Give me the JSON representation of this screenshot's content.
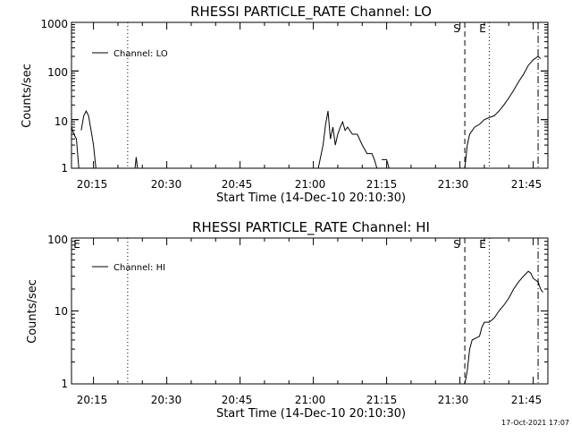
{
  "footer_timestamp": "17-Oct-2021 17:07",
  "chart_data": [
    {
      "type": "line",
      "title": "RHESSI PARTICLE_RATE Channel: LO",
      "xlabel": "Start Time (14-Dec-10 20:10:30)",
      "ylabel": "Counts/sec",
      "yscale": "log",
      "ylim": [
        1,
        1000
      ],
      "xlim_minutes": [
        20.16,
        21.8
      ],
      "xticks": [
        "20:15",
        "20:30",
        "20:45",
        "21:00",
        "21:15",
        "21:30",
        "21:45"
      ],
      "yticks": [
        "1",
        "10",
        "100",
        "1000"
      ],
      "legend": {
        "label": "Channel: LO",
        "placement": "top-left"
      },
      "markers": [
        {
          "time": "20:22",
          "style": "dotted",
          "label": ""
        },
        {
          "time": "21:31",
          "style": "dashed",
          "label": "S"
        },
        {
          "time": "21:36",
          "style": "dotted",
          "label": "E"
        },
        {
          "time": "21:46",
          "style": "dashdot",
          "label": ""
        }
      ],
      "series": [
        {
          "name": "Channel: LO",
          "segments": [
            [
              [
                "20:10:30",
                7
              ],
              [
                "20:11",
                5
              ],
              [
                "20:11:30",
                4
              ],
              [
                "20:12",
                1
              ]
            ],
            [
              [
                "20:12:30",
                6
              ],
              [
                "20:13",
                12
              ],
              [
                "20:13:30",
                15
              ],
              [
                "20:14",
                12
              ],
              [
                "20:14:30",
                6
              ],
              [
                "20:15",
                3
              ],
              [
                "20:15:30",
                1
              ]
            ],
            [
              [
                "20:23:30",
                1
              ],
              [
                "20:23:45",
                1.7
              ],
              [
                "20:24",
                1
              ]
            ],
            [
              [
                "21:01",
                1
              ],
              [
                "21:02",
                3
              ],
              [
                "21:02:30",
                8
              ],
              [
                "21:03",
                15
              ],
              [
                "21:03:30",
                4
              ],
              [
                "21:04",
                7
              ],
              [
                "21:04:30",
                3
              ],
              [
                "21:05",
                5
              ],
              [
                "21:05:30",
                7
              ],
              [
                "21:06",
                9
              ],
              [
                "21:06:30",
                6
              ],
              [
                "21:07",
                7
              ],
              [
                "21:08",
                5
              ],
              [
                "21:09",
                5
              ],
              [
                "21:10",
                3
              ],
              [
                "21:11",
                2
              ],
              [
                "21:12",
                2
              ],
              [
                "21:12:30",
                1.5
              ],
              [
                "21:13",
                1
              ]
            ],
            [
              [
                "21:14",
                1.5
              ],
              [
                "21:15",
                1.5
              ],
              [
                "21:15:30",
                1
              ]
            ],
            [
              [
                "21:31",
                1
              ],
              [
                "21:31:30",
                3
              ],
              [
                "21:32",
                5
              ],
              [
                "21:33",
                7
              ],
              [
                "21:34",
                8
              ],
              [
                "21:35",
                10
              ],
              [
                "21:36",
                11
              ],
              [
                "21:37",
                12
              ],
              [
                "21:38",
                15
              ],
              [
                "21:39",
                20
              ],
              [
                "21:40",
                28
              ],
              [
                "21:41",
                40
              ],
              [
                "21:42",
                60
              ],
              [
                "21:43",
                85
              ],
              [
                "21:44",
                130
              ],
              [
                "21:45",
                170
              ],
              [
                "21:46",
                200
              ],
              [
                "21:46:30",
                180
              ]
            ]
          ]
        }
      ]
    },
    {
      "type": "line",
      "title": "RHESSI PARTICLE_RATE Channel: HI",
      "xlabel": "Start Time (14-Dec-10 20:10:30)",
      "ylabel": "Counts/sec",
      "yscale": "log",
      "ylim": [
        1,
        100
      ],
      "xlim_minutes": [
        20.16,
        21.8
      ],
      "xticks": [
        "20:15",
        "20:30",
        "20:45",
        "21:00",
        "21:15",
        "21:30",
        "21:45"
      ],
      "yticks": [
        "1",
        "10",
        "100"
      ],
      "legend": {
        "label": "Channel: HI",
        "placement": "top-left"
      },
      "markers": [
        {
          "time": "20:10:30",
          "style": "none",
          "label": "E"
        },
        {
          "time": "20:22",
          "style": "dotted",
          "label": ""
        },
        {
          "time": "21:31",
          "style": "dashed",
          "label": "S"
        },
        {
          "time": "21:36",
          "style": "dotted",
          "label": "E"
        },
        {
          "time": "21:46",
          "style": "dashdot",
          "label": ""
        }
      ],
      "series": [
        {
          "name": "Channel: HI",
          "segments": [
            [
              [
                "21:31",
                1
              ],
              [
                "21:31:30",
                1.5
              ],
              [
                "21:32",
                3
              ],
              [
                "21:32:30",
                4
              ],
              [
                "21:34",
                4.5
              ],
              [
                "21:34:30",
                6
              ],
              [
                "21:35",
                7
              ],
              [
                "21:36",
                7
              ],
              [
                "21:37",
                8
              ],
              [
                "21:38",
                10
              ],
              [
                "21:39",
                12
              ],
              [
                "21:40",
                15
              ],
              [
                "21:41",
                20
              ],
              [
                "21:42",
                25
              ],
              [
                "21:43",
                30
              ],
              [
                "21:44",
                35
              ],
              [
                "21:44:30",
                33
              ],
              [
                "21:45",
                28
              ],
              [
                "21:46",
                25
              ],
              [
                "21:46:30",
                20
              ],
              [
                "21:47",
                18
              ]
            ]
          ]
        }
      ]
    }
  ]
}
